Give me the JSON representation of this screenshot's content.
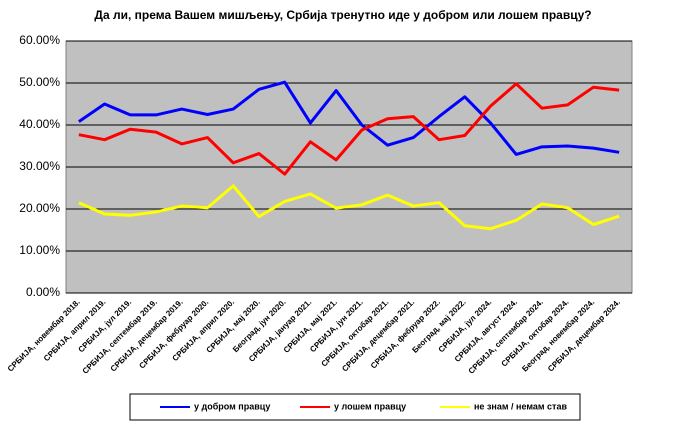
{
  "chart_data": {
    "type": "line",
    "title": "Да ли, према Вашем мишљењу, Србија тренутно иде у добром или лошем правцу?",
    "categories": [
      "СРБИЈА, новембар 2018.",
      "СРБИЈА, април 2019.",
      "СРБИЈА, јул 2019.",
      "СРБИЈА, септембар 2019.",
      "СРБИЈА, децембар 2019.",
      "СРБИЈА, фебруар 2020.",
      "СРБИЈА, април 2020.",
      "СРБИЈА, мај 2020.",
      "Београд, јун 2020.",
      "СРБИЈА, јануар 2021.",
      "СРБИЈА, мај 2021.",
      "СРБИЈА, јун 2021.",
      "СРБИЈА, октобар 2021.",
      "СРБИЈА, децембар 2021.",
      "СРБИЈА, фебруар 2022.",
      "Београд, мај 2022.",
      "СРБИЈА, јул 2024.",
      "СРБИЈА, август 2024.",
      "СРБИЈА, септембар 2024.",
      "СРБИЈА, октобар 2024.",
      "Београд, новембар 2024.",
      "СРБИЈА, децембар 2024."
    ],
    "series": [
      {
        "name": "у добром правцу",
        "color": "#0000ff",
        "values": [
          40.8,
          45,
          42.4,
          42.4,
          43.8,
          42.5,
          43.8,
          48.5,
          50.2,
          40.5,
          48.2,
          40,
          35.2,
          37,
          42,
          46.7,
          40.5,
          33,
          34.8,
          35,
          34.5,
          33.5
        ]
      },
      {
        "name": "у лошем правцу",
        "color": "#ff0000",
        "values": [
          37.7,
          36.5,
          39,
          38.3,
          35.5,
          37,
          31,
          33.2,
          28.3,
          36,
          31.7,
          38.8,
          41.5,
          42,
          36.5,
          37.5,
          44.5,
          49.8,
          44,
          44.8,
          49,
          48.3
        ]
      },
      {
        "name": "не знам / немам став",
        "color": "#ffff00",
        "values": [
          21.5,
          18.8,
          18.5,
          19.3,
          20.7,
          20.3,
          25.5,
          18.2,
          21.8,
          23.6,
          20.2,
          21,
          23.3,
          20.7,
          21.5,
          16,
          15.3,
          17.3,
          21.2,
          20.3,
          16.3,
          18.3
        ]
      }
    ],
    "ylim": [
      0,
      60
    ],
    "yticks": [
      {
        "value": 0,
        "label": "0.00%"
      },
      {
        "value": 10,
        "label": "10.00%"
      },
      {
        "value": 20,
        "label": "20.00%"
      },
      {
        "value": 30,
        "label": "30.00%"
      },
      {
        "value": 40,
        "label": "40.00%"
      },
      {
        "value": 50,
        "label": "50.00%"
      },
      {
        "value": 60,
        "label": "60.00%"
      }
    ],
    "grid": true,
    "legend": "bottom"
  }
}
